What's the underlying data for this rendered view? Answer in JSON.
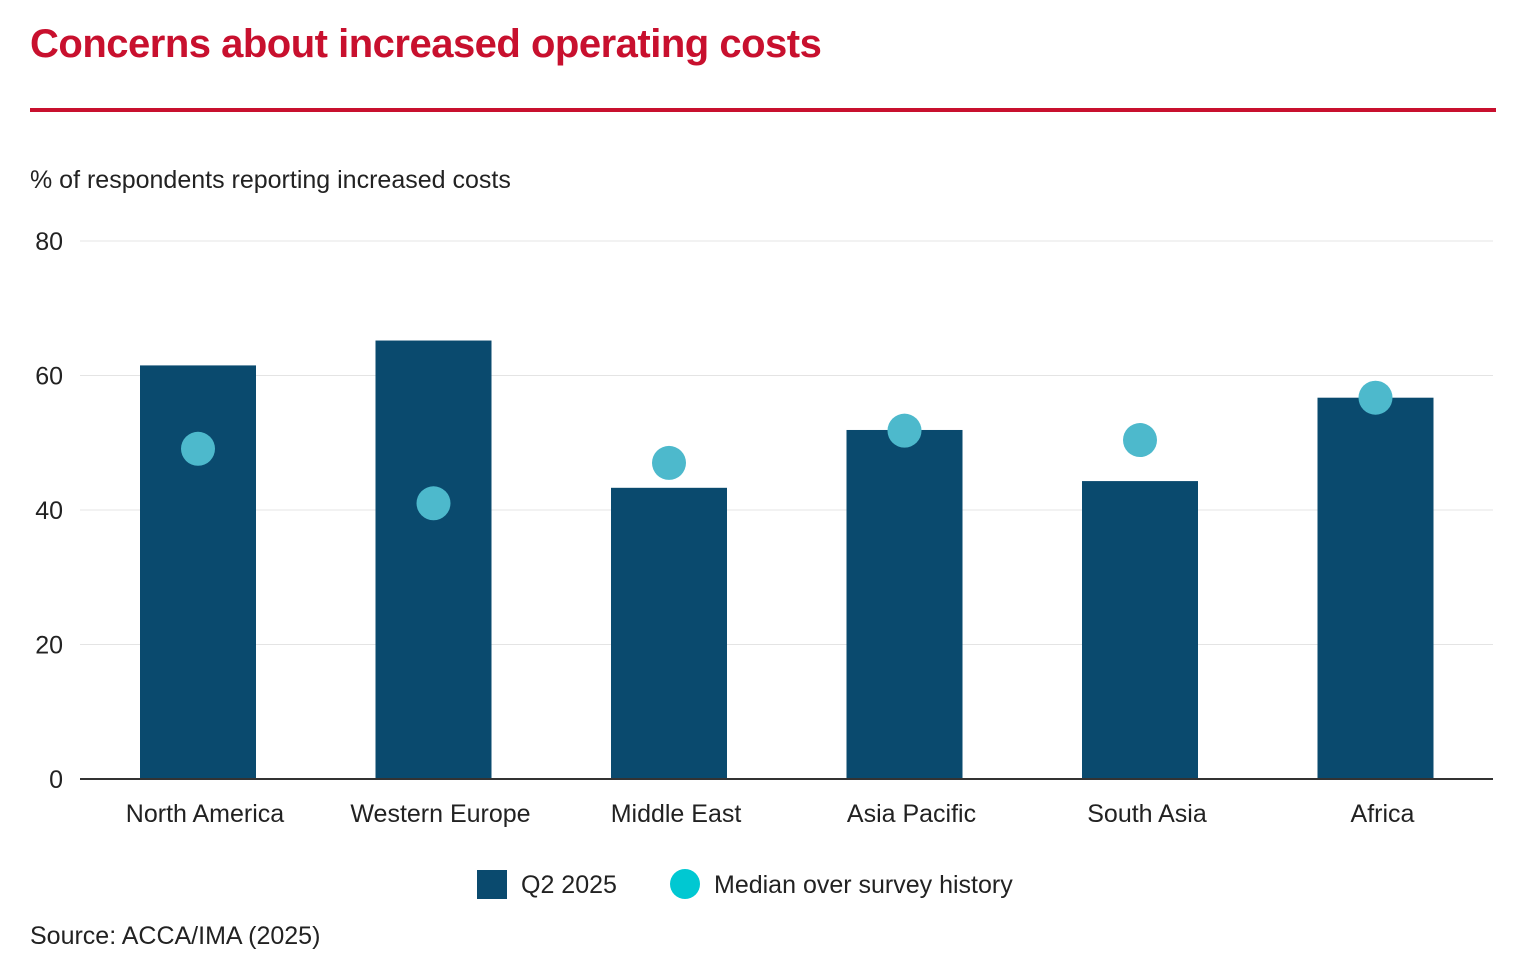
{
  "title": "Concerns about increased operating costs",
  "source": "Source: ACCA/IMA (2025)",
  "colors": {
    "title": "#c8102e",
    "rule": "#c8102e",
    "bar": "#0a4a6e",
    "dot": "#4db9cc",
    "legend_dot": "#00c8d2",
    "grid": "#e4e4e4",
    "axis": "#333333"
  },
  "chart_data": {
    "type": "bar",
    "ylabel": "% of respondents reporting increased costs",
    "ylim": [
      0,
      80
    ],
    "yticks": [
      "0",
      "20",
      "40",
      "60",
      "80"
    ],
    "categories": [
      "North America",
      "Western Europe",
      "Middle East",
      "Asia Pacific",
      "South Asia",
      "Africa"
    ],
    "series": [
      {
        "name": "Q2 2025",
        "kind": "bar",
        "values": [
          61.5,
          65.2,
          43.3,
          51.9,
          44.3,
          56.7
        ]
      },
      {
        "name": "Median over survey history",
        "kind": "dot",
        "values": [
          49.1,
          41.0,
          47.0,
          51.8,
          50.4,
          56.7
        ]
      }
    ],
    "grid": true,
    "legend_position": "bottom-center"
  }
}
